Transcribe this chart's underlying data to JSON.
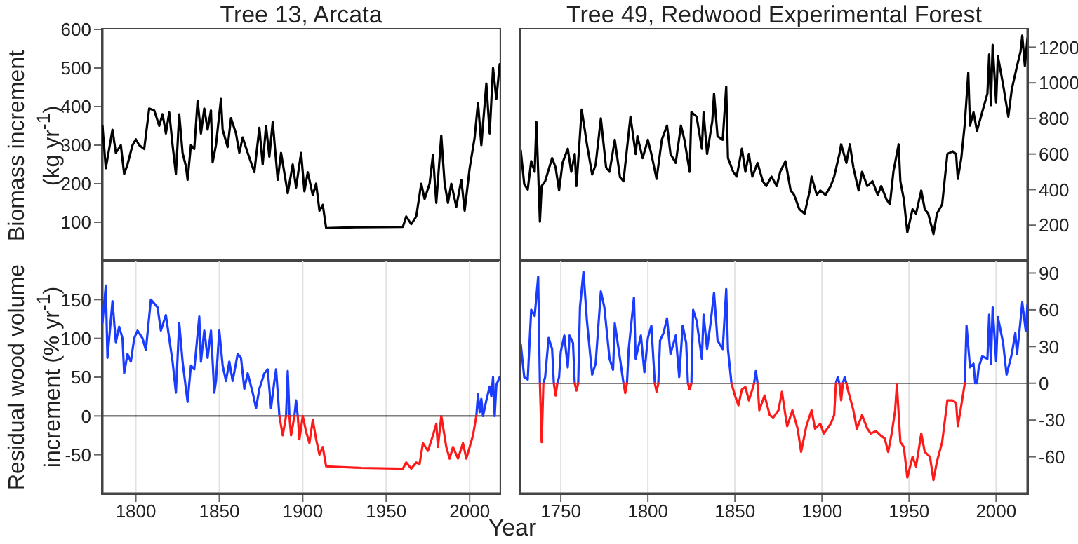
{
  "chart_data": [
    {
      "type": "line",
      "title": "Tree 13, Arcata",
      "ylabel": "Biomass increment (kg yr$^{-1}$)",
      "xlim": [
        1780,
        2018
      ],
      "xticks": [
        1800,
        1850,
        1900,
        1950,
        2000
      ],
      "ylim": [
        0,
        600
      ],
      "yticks": [
        100,
        200,
        300,
        400,
        500,
        600
      ],
      "grid": "x",
      "tick_labels": "y",
      "series": [
        {
          "color": "#000000",
          "x": [
            1780,
            1782,
            1786,
            1788,
            1791,
            1793,
            1795,
            1798,
            1800,
            1802,
            1805,
            1808,
            1811,
            1814,
            1816,
            1818,
            1820,
            1822,
            1824,
            1826,
            1828,
            1830,
            1831,
            1833,
            1835,
            1837,
            1839,
            1841,
            1843,
            1845,
            1846,
            1848,
            1851,
            1852,
            1855,
            1857,
            1860,
            1862,
            1864,
            1867,
            1871,
            1874,
            1876,
            1878,
            1880,
            1882,
            1885,
            1887,
            1891,
            1894,
            1896,
            1899,
            1901,
            1903,
            1906,
            1908,
            1910,
            1912,
            1914,
            1932,
            1960,
            1962,
            1965,
            1968,
            1971,
            1973,
            1976,
            1978,
            1980,
            1983,
            1985,
            1987,
            1989,
            1992,
            1995,
            1997,
            2000,
            2003,
            2005,
            2007,
            2010,
            2012,
            2014,
            2016,
            2018
          ],
          "values": [
            350,
            240,
            340,
            280,
            300,
            225,
            250,
            300,
            315,
            300,
            290,
            395,
            390,
            350,
            380,
            330,
            385,
            300,
            225,
            380,
            280,
            245,
            210,
            300,
            290,
            415,
            330,
            395,
            340,
            390,
            255,
            300,
            420,
            340,
            295,
            370,
            330,
            280,
            320,
            280,
            230,
            345,
            250,
            350,
            270,
            360,
            210,
            280,
            175,
            250,
            190,
            280,
            180,
            230,
            170,
            200,
            130,
            145,
            85,
            87,
            88,
            115,
            95,
            115,
            200,
            160,
            200,
            275,
            150,
            325,
            200,
            150,
            200,
            140,
            210,
            130,
            240,
            320,
            410,
            300,
            460,
            330,
            500,
            420,
            510
          ]
        }
      ]
    },
    {
      "type": "line",
      "title": "Tree 49, Redwood Experimental Forest",
      "xlim": [
        1727,
        2018
      ],
      "xticks": [
        1750,
        1800,
        1850,
        1900,
        1950,
        2000
      ],
      "y2lim": [
        0,
        1300
      ],
      "y2ticks": [
        200,
        400,
        600,
        800,
        1000,
        1200
      ],
      "grid": "x",
      "tick_labels": "y",
      "series": [
        {
          "color": "#000000",
          "axis": "y2",
          "x": [
            1727,
            1729,
            1731,
            1733,
            1735,
            1736,
            1738,
            1739,
            1741,
            1745,
            1747,
            1749,
            1751,
            1754,
            1756,
            1758,
            1759,
            1762,
            1765,
            1768,
            1770,
            1773,
            1776,
            1778,
            1781,
            1784,
            1786,
            1788,
            1790,
            1793,
            1794,
            1797,
            1800,
            1802,
            1805,
            1808,
            1811,
            1813,
            1816,
            1819,
            1821,
            1824,
            1825,
            1828,
            1831,
            1832,
            1834,
            1837,
            1838,
            1840,
            1843,
            1845,
            1846,
            1849,
            1851,
            1854,
            1856,
            1858,
            1860,
            1863,
            1866,
            1868,
            1871,
            1874,
            1876,
            1879,
            1882,
            1884,
            1887,
            1890,
            1893,
            1894,
            1897,
            1899,
            1902,
            1905,
            1907,
            1910,
            1911,
            1914,
            1916,
            1918,
            1921,
            1923,
            1926,
            1929,
            1932,
            1934,
            1937,
            1939,
            1941,
            1944,
            1945,
            1947,
            1949,
            1952,
            1954,
            1957,
            1959,
            1961,
            1964,
            1966,
            1969,
            1972,
            1975,
            1977,
            1978,
            1980,
            1982,
            1984,
            1985,
            1987,
            1989,
            1992,
            1995,
            1996,
            1997,
            1998,
            2000,
            2001,
            2004,
            2007,
            2009,
            2012,
            2014,
            2015,
            2016.5,
            2018
          ],
          "values": [
            620,
            430,
            400,
            560,
            500,
            780,
            220,
            420,
            447,
            577,
            525,
            395,
            550,
            630,
            500,
            600,
            420,
            850,
            655,
            485,
            540,
            800,
            525,
            500,
            680,
            470,
            447,
            630,
            810,
            600,
            700,
            577,
            680,
            600,
            460,
            680,
            760,
            600,
            550,
            760,
            680,
            500,
            835,
            810,
            630,
            835,
            600,
            785,
            940,
            700,
            680,
            980,
            577,
            500,
            473,
            630,
            500,
            600,
            473,
            550,
            447,
            420,
            473,
            420,
            500,
            560,
            395,
            370,
            290,
            265,
            395,
            473,
            370,
            395,
            370,
            420,
            473,
            600,
            655,
            550,
            655,
            525,
            395,
            500,
            420,
            447,
            370,
            420,
            345,
            317,
            500,
            655,
            447,
            345,
            160,
            290,
            265,
            395,
            290,
            265,
            150,
            265,
            317,
            600,
            615,
            600,
            460,
            577,
            770,
            1057,
            760,
            835,
            730,
            835,
            940,
            1160,
            875,
            1213,
            890,
            1150,
            990,
            810,
            965,
            1095,
            1175,
            1265,
            1095,
            1250
          ]
        }
      ]
    },
    {
      "type": "line",
      "ylabel": "Residual wood volume increment (% yr$^{-1}$)",
      "xlabel": "Year",
      "xlim": [
        1780,
        2018
      ],
      "xticks": [
        1800,
        1850,
        1900,
        1950,
        2000
      ],
      "ylim": [
        -100,
        200
      ],
      "yticks": [
        -50,
        0,
        50,
        100,
        150
      ],
      "grid": "x",
      "ref_lines": [
        {
          "axis": "y",
          "value": 0,
          "color": "#000000"
        }
      ],
      "series": [
        {
          "color": "#1a3cff",
          "x": [
            1780,
            1782,
            1783,
            1786,
            1788,
            1790,
            1792,
            1793,
            1795,
            1797,
            1799,
            1801,
            1804,
            1806,
            1809,
            1811,
            1813,
            1815,
            1818,
            1820,
            1822,
            1824,
            1826,
            1828,
            1830,
            1831,
            1833,
            1835,
            1838,
            1839,
            1841,
            1843,
            1845,
            1847,
            1848,
            1850,
            1852,
            1854,
            1856,
            1858,
            1861,
            1863,
            1865,
            1867,
            1870,
            1872,
            1874,
            1877,
            1879,
            1881,
            1883,
            1884,
            1886,
            1888,
            1890,
            1891,
            1892,
            1894,
            1895,
            1896,
            1897,
            1950,
            2004,
            2005,
            2006,
            2007,
            2008,
            2010,
            2012,
            2013,
            2014,
            2015,
            2016,
            2018
          ],
          "values": [
            120,
            168,
            75,
            148,
            95,
            115,
            100,
            55,
            80,
            70,
            100,
            110,
            100,
            85,
            150,
            145,
            140,
            110,
            130,
            100,
            70,
            30,
            120,
            70,
            35,
            18,
            65,
            60,
            128,
            70,
            110,
            75,
            110,
            30,
            45,
            110,
            65,
            45,
            70,
            45,
            80,
            75,
            35,
            55,
            30,
            10,
            35,
            55,
            60,
            10,
            45,
            60,
            0,
            null,
            0,
            58,
            0,
            null,
            0,
            20,
            0,
            null,
            0,
            28,
            5,
            22,
            0,
            20,
            38,
            25,
            50,
            0,
            40,
            50
          ]
        },
        {
          "color": "#ff1a1a",
          "x": [
            1886,
            1888,
            1890,
            1891,
            1892,
            1893,
            1895,
            1896,
            1897,
            1898,
            1900,
            1902,
            1904,
            1906,
            1908,
            1910,
            1912,
            1914,
            1935,
            1960,
            1962,
            1965,
            1968,
            1970,
            1972,
            1975,
            1978,
            1980,
            1981,
            1983,
            1986,
            1988,
            1990,
            1993,
            1996,
            1998,
            2000,
            2002,
            2004
          ],
          "values": [
            0,
            -25,
            0,
            null,
            0,
            -25,
            0,
            null,
            0,
            -30,
            0,
            -20,
            -35,
            -5,
            -30,
            -50,
            -40,
            -65,
            -67,
            -68,
            -60,
            -68,
            -60,
            -62,
            -35,
            -45,
            -25,
            -10,
            -40,
            0,
            -40,
            -55,
            -40,
            -55,
            -35,
            -55,
            -40,
            -25,
            0
          ]
        }
      ]
    },
    {
      "type": "line",
      "xlim": [
        1727,
        2018
      ],
      "xticks": [
        1750,
        1800,
        1850,
        1900,
        1950,
        2000
      ],
      "y2lim": [
        -90,
        100
      ],
      "y2ticks": [
        -60,
        -30,
        0,
        30,
        60,
        90
      ],
      "grid": "x",
      "ref_lines": [
        {
          "axis": "y2",
          "value": 0,
          "color": "#000000"
        }
      ],
      "series": [
        {
          "color": "#1a3cff",
          "axis": "y2",
          "x": [
            1727,
            1729,
            1731,
            1733,
            1735,
            1737,
            1738,
            1739,
            1740,
            1741,
            1743,
            1745,
            1746,
            1747,
            1748,
            1749,
            1750,
            1752,
            1754,
            1755,
            1757,
            1758,
            1759,
            1760,
            1761,
            1763,
            1765,
            1768,
            1770,
            1773,
            1775,
            1778,
            1780,
            1781,
            1784,
            1786,
            1787,
            1788,
            1789,
            1792,
            1793,
            1796,
            1798,
            1800,
            1802,
            1804,
            1805,
            1806,
            1807,
            1809,
            1811,
            1813,
            1816,
            1818,
            1820,
            1822,
            1823,
            1824,
            1825,
            1826,
            1828,
            1831,
            1832,
            1834,
            1836,
            1838,
            1840,
            1843,
            1845,
            1846,
            1848,
            1850,
            1861,
            1862,
            1863,
            1880,
            1908,
            1909,
            1910,
            1911,
            1912,
            1913,
            1914,
            1950,
            1982,
            1983,
            1985,
            1987,
            1988,
            1988.5,
            1989,
            1990,
            1992,
            1995,
            1996,
            1997,
            1998,
            2000,
            2001,
            2004,
            2006,
            2009,
            2011,
            2012,
            2014,
            2015,
            2017,
            2018
          ],
          "values": [
            32,
            5,
            3,
            60,
            55,
            87,
            0,
            null,
            0,
            5,
            37,
            28,
            0,
            null,
            0,
            5,
            26,
            39,
            13,
            39,
            33,
            0,
            null,
            0,
            62,
            91,
            51,
            7,
            16,
            75,
            62,
            20,
            11,
            49,
            20,
            0,
            null,
            0,
            28,
            70,
            20,
            39,
            9,
            37,
            47,
            0,
            null,
            0,
            35,
            41,
            53,
            24,
            39,
            5,
            47,
            33,
            0,
            null,
            0,
            60,
            51,
            20,
            56,
            28,
            49,
            74,
            35,
            28,
            77,
            28,
            0,
            null,
            0,
            10,
            0,
            null,
            0,
            5,
            0,
            null,
            0,
            5,
            0,
            null,
            0,
            47,
            13,
            16,
            0,
            null,
            0,
            13,
            22,
            20,
            56,
            16,
            62,
            18,
            54,
            33,
            7,
            24,
            41,
            24,
            51,
            66,
            43,
            64
          ]
        },
        {
          "color": "#ff1a1a",
          "axis": "y2",
          "x": [
            1738,
            1739,
            1740,
            1744,
            1746,
            1747,
            1748,
            1753,
            1758,
            1759,
            1760,
            1770,
            1786,
            1787,
            1788,
            1795,
            1804,
            1805,
            1806,
            1815,
            1823,
            1824,
            1825,
            1836,
            1848,
            1850,
            1852,
            1854,
            1856,
            1858,
            1860,
            1861,
            1862,
            1863,
            1864,
            1867,
            1870,
            1872,
            1875,
            1877,
            1879,
            1880,
            1883,
            1886,
            1888,
            1891,
            1894,
            1896,
            1899,
            1901,
            1905,
            1907,
            1908,
            1909,
            1910,
            1911,
            1912,
            1913,
            1914,
            1915,
            1918,
            1920,
            1923,
            1926,
            1928,
            1931,
            1934,
            1936,
            1938,
            1940,
            1942,
            1943,
            1945,
            1947,
            1949,
            1952,
            1954,
            1957,
            1959,
            1962,
            1964,
            1966,
            1969,
            1972,
            1975,
            1977,
            1978,
            1980,
            1982
          ],
          "values": [
            0,
            -48,
            0,
            null,
            0,
            -10,
            0,
            null,
            0,
            -6,
            0,
            null,
            0,
            -8,
            0,
            null,
            0,
            -7,
            0,
            null,
            0,
            -5,
            0,
            null,
            0,
            -10,
            -18,
            -5,
            -3,
            -14,
            -5,
            0,
            null,
            0,
            -22,
            -10,
            -26,
            -28,
            -22,
            -7,
            -26,
            -35,
            -22,
            -37,
            -56,
            -35,
            -22,
            -37,
            -33,
            -41,
            -33,
            -26,
            0,
            null,
            0,
            -14,
            0,
            null,
            0,
            -6,
            -22,
            -37,
            -26,
            -37,
            -41,
            -39,
            -43,
            -45,
            -56,
            -41,
            -22,
            -1,
            -48,
            -52,
            -77,
            -60,
            -68,
            -41,
            -56,
            -60,
            -79,
            -64,
            -48,
            -14,
            -14,
            -16,
            -35,
            -18,
            0
          ]
        }
      ]
    }
  ]
}
